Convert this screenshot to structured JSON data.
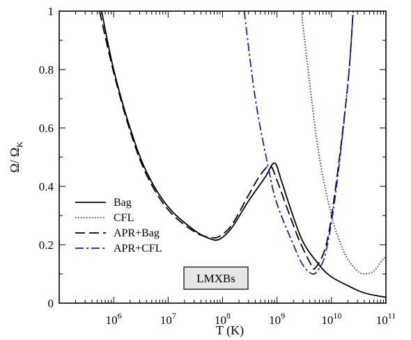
{
  "chart_data": {
    "type": "line",
    "title": "",
    "xlabel": "T (K)",
    "ylabel": "Ω/ Ω_K",
    "ylabel_main": "Ω/ Ω",
    "ylabel_sub": "K",
    "xscale": "log",
    "xlim": [
      100000,
      100000000000
    ],
    "ylim": [
      0,
      1
    ],
    "grid": false,
    "legend_position": "lower-left",
    "xticks": [
      {
        "value": 1000000,
        "base": "10",
        "exp": "6"
      },
      {
        "value": 10000000,
        "base": "10",
        "exp": "7"
      },
      {
        "value": 100000000,
        "base": "10",
        "exp": "8"
      },
      {
        "value": 1000000000,
        "base": "10",
        "exp": "9"
      },
      {
        "value": 10000000000,
        "base": "10",
        "exp": "10"
      },
      {
        "value": 100000000000,
        "base": "10",
        "exp": "11"
      }
    ],
    "yticks": [
      {
        "value": 0,
        "label": "0"
      },
      {
        "value": 0.2,
        "label": "0.2"
      },
      {
        "value": 0.4,
        "label": "0.4"
      },
      {
        "value": 0.6,
        "label": "0.6"
      },
      {
        "value": 0.8,
        "label": "0.8"
      },
      {
        "value": 1,
        "label": "1"
      }
    ],
    "annotation": "LMXBs",
    "series": [
      {
        "name": "Bag",
        "color": "#000000",
        "dash": "solid",
        "points": [
          [
            600000,
            1.0
          ],
          [
            1000000,
            0.8
          ],
          [
            2000000,
            0.6
          ],
          [
            4000000,
            0.45
          ],
          [
            10000000,
            0.33
          ],
          [
            30000000,
            0.25
          ],
          [
            60000000,
            0.22
          ],
          [
            90000000,
            0.22
          ],
          [
            150000000,
            0.26
          ],
          [
            300000000,
            0.35
          ],
          [
            600000000,
            0.43
          ],
          [
            900000000,
            0.48
          ],
          [
            1200000000,
            0.42
          ],
          [
            1800000000,
            0.32
          ],
          [
            3000000000,
            0.21
          ],
          [
            6000000000,
            0.13
          ],
          [
            10000000000,
            0.09
          ],
          [
            20000000000,
            0.06
          ],
          [
            40000000000,
            0.035
          ],
          [
            100000000000,
            0.02
          ]
        ]
      },
      {
        "name": "CFL",
        "color": "#1d1db8",
        "dash": "dotted",
        "points": [
          [
            2800000000,
            1.0
          ],
          [
            4000000000,
            0.75
          ],
          [
            6000000000,
            0.5
          ],
          [
            10000000000,
            0.3
          ],
          [
            15000000000,
            0.2
          ],
          [
            20000000000,
            0.15
          ],
          [
            30000000000,
            0.11
          ],
          [
            40000000000,
            0.1
          ],
          [
            60000000000,
            0.11
          ],
          [
            80000000000,
            0.14
          ],
          [
            100000000000,
            0.16
          ]
        ]
      },
      {
        "name": "APR+Bag",
        "color": "#000000",
        "dash": "long-dash",
        "points": [
          [
            550000,
            1.0
          ],
          [
            1000000,
            0.79
          ],
          [
            2000000,
            0.59
          ],
          [
            4000000,
            0.44
          ],
          [
            10000000,
            0.32
          ],
          [
            30000000,
            0.245
          ],
          [
            60000000,
            0.225
          ],
          [
            90000000,
            0.23
          ],
          [
            150000000,
            0.27
          ],
          [
            300000000,
            0.37
          ],
          [
            500000000,
            0.44
          ],
          [
            750000000,
            0.47
          ],
          [
            1000000000,
            0.42
          ],
          [
            1500000000,
            0.33
          ],
          [
            2500000000,
            0.22
          ],
          [
            4000000000,
            0.14
          ],
          [
            5000000000,
            0.12
          ],
          [
            8000000000,
            0.2
          ],
          [
            12000000000,
            0.4
          ],
          [
            20000000000,
            0.75
          ],
          [
            25000000000,
            1.0
          ]
        ]
      },
      {
        "name": "APR+CFL",
        "color": "#1d1db8",
        "dash": "dash-dot",
        "points": [
          [
            250000000,
            1.0
          ],
          [
            400000000,
            0.7
          ],
          [
            700000000,
            0.46
          ],
          [
            1000000000,
            0.34
          ],
          [
            2000000000,
            0.2
          ],
          [
            3000000000,
            0.13
          ],
          [
            4500000000,
            0.1
          ],
          [
            6000000000,
            0.12
          ],
          [
            8000000000,
            0.18
          ],
          [
            12000000000,
            0.38
          ],
          [
            20000000000,
            0.75
          ],
          [
            25000000000,
            1.0
          ]
        ]
      }
    ]
  }
}
